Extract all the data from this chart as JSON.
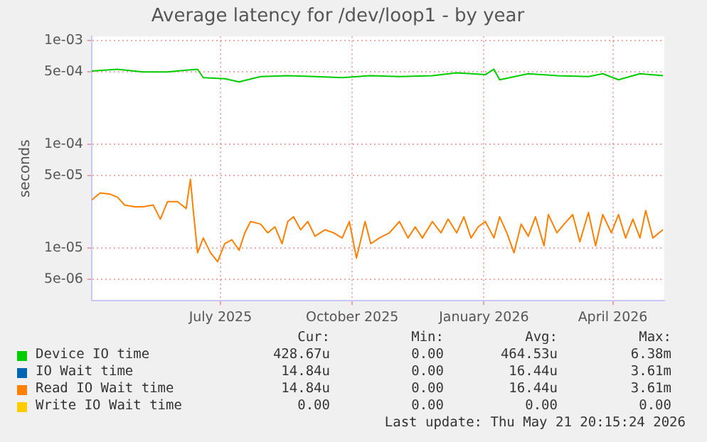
{
  "chart_data": {
    "type": "line",
    "title": "Average latency for /dev/loop1 - by year",
    "ylabel": "seconds",
    "log": "y",
    "grid": true,
    "legend": "bottom",
    "marker": "none",
    "line_style": "solid",
    "xlim": [
      "2025-04-16",
      "2026-05-21"
    ],
    "xticks": [
      {
        "value": "2025-07-15",
        "label": "July 2025"
      },
      {
        "value": "2025-10-15",
        "label": "October 2025"
      },
      {
        "value": "2026-01-15",
        "label": "January 2026"
      },
      {
        "value": "2026-04-15",
        "label": "April 2026"
      }
    ],
    "ylim": [
      3.1e-06,
      0.0011
    ],
    "yticks": [
      {
        "value": 5e-06,
        "label": "5e-06"
      },
      {
        "value": 1e-05,
        "label": "1e-05"
      },
      {
        "value": 5e-05,
        "label": "5e-05"
      },
      {
        "value": 0.0001,
        "label": "1e-04"
      },
      {
        "value": 0.0005,
        "label": "5e-04"
      },
      {
        "value": 0.001,
        "label": "1e-03"
      }
    ],
    "series": [
      {
        "name": "Device IO time",
        "color": "#00cc00",
        "x": [
          "2025-04-16",
          "2025-05-04",
          "2025-05-22",
          "2025-06-08",
          "2025-06-21",
          "2025-06-29",
          "2025-07-03",
          "2025-07-18",
          "2025-07-28",
          "2025-08-12",
          "2025-08-31",
          "2025-09-19",
          "2025-10-08",
          "2025-10-28",
          "2025-11-17",
          "2025-12-10",
          "2025-12-27",
          "2026-01-16",
          "2026-01-22",
          "2026-01-26",
          "2026-02-15",
          "2026-03-07",
          "2026-03-29",
          "2026-04-08",
          "2026-04-19",
          "2026-05-04",
          "2026-05-20"
        ],
        "values": [
          0.00051,
          0.00053,
          0.0005,
          0.0005,
          0.00052,
          0.00053,
          0.00044,
          0.00043,
          0.0004,
          0.00045,
          0.00046,
          0.00045,
          0.00044,
          0.00046,
          0.00045,
          0.00046,
          0.00049,
          0.00047,
          0.00053,
          0.00042,
          0.00048,
          0.00046,
          0.00045,
          0.00048,
          0.00042,
          0.00048,
          0.00046
        ]
      },
      {
        "name": "IO Wait time",
        "color": "#0066b3"
      },
      {
        "name": "Read IO Wait time",
        "color": "#ff8000",
        "x": [
          "2025-04-16",
          "2025-04-22",
          "2025-04-29",
          "2025-05-04",
          "2025-05-09",
          "2025-05-16",
          "2025-05-22",
          "2025-05-29",
          "2025-06-03",
          "2025-06-08",
          "2025-06-15",
          "2025-06-21",
          "2025-06-24",
          "2025-06-26",
          "2025-06-29",
          "2025-07-03",
          "2025-07-08",
          "2025-07-13",
          "2025-07-18",
          "2025-07-23",
          "2025-07-28",
          "2025-08-01",
          "2025-08-05",
          "2025-08-12",
          "2025-08-17",
          "2025-08-22",
          "2025-08-27",
          "2025-08-31",
          "2025-09-04",
          "2025-09-09",
          "2025-09-14",
          "2025-09-19",
          "2025-09-26",
          "2025-10-02",
          "2025-10-08",
          "2025-10-13",
          "2025-10-18",
          "2025-10-24",
          "2025-10-28",
          "2025-11-03",
          "2025-11-10",
          "2025-11-17",
          "2025-11-23",
          "2025-11-28",
          "2025-12-03",
          "2025-12-10",
          "2025-12-16",
          "2025-12-21",
          "2025-12-27",
          "2026-01-01",
          "2026-01-06",
          "2026-01-11",
          "2026-01-16",
          "2026-01-22",
          "2026-01-26",
          "2026-01-31",
          "2026-02-05",
          "2026-02-10",
          "2026-02-15",
          "2026-02-20",
          "2026-02-26",
          "2026-03-01",
          "2026-03-07",
          "2026-03-12",
          "2026-03-18",
          "2026-03-23",
          "2026-03-29",
          "2026-04-03",
          "2026-04-08",
          "2026-04-14",
          "2026-04-19",
          "2026-04-24",
          "2026-04-29",
          "2026-05-04",
          "2026-05-08",
          "2026-05-13",
          "2026-05-20"
        ],
        "values": [
          2.9e-05,
          3.4e-05,
          3.3e-05,
          3.1e-05,
          2.6e-05,
          2.5e-05,
          2.5e-05,
          2.6e-05,
          1.9e-05,
          2.8e-05,
          2.8e-05,
          2.4e-05,
          4.6e-05,
          2.3e-05,
          9e-06,
          1.25e-05,
          9e-06,
          7.4e-06,
          1.1e-05,
          1.2e-05,
          9.5e-06,
          1.4e-05,
          1.8e-05,
          1.7e-05,
          1.4e-05,
          1.6e-05,
          1.1e-05,
          1.8e-05,
          2e-05,
          1.5e-05,
          1.8e-05,
          1.3e-05,
          1.5e-05,
          1.4e-05,
          1.25e-05,
          1.8e-05,
          8e-06,
          1.8e-05,
          1.1e-05,
          1.25e-05,
          1.4e-05,
          1.8e-05,
          1.25e-05,
          1.6e-05,
          1.25e-05,
          1.8e-05,
          1.4e-05,
          1.9e-05,
          1.4e-05,
          2e-05,
          1.25e-05,
          1.6e-05,
          1.8e-05,
          1.25e-05,
          2e-05,
          1.4e-05,
          9e-06,
          1.7e-05,
          1.3e-05,
          2e-05,
          1.05e-05,
          2.1e-05,
          1.4e-05,
          1.7e-05,
          2.1e-05,
          1.15e-05,
          2.2e-05,
          1.05e-05,
          2.1e-05,
          1.4e-05,
          2.1e-05,
          1.25e-05,
          1.9e-05,
          1.25e-05,
          2.3e-05,
          1.25e-05,
          1.5e-05
        ]
      },
      {
        "name": "Write IO Wait time",
        "color": "#ffcc00"
      }
    ],
    "annotations": [
      "Cur:",
      "Min:",
      "Avg:",
      "Max:",
      "428.67u",
      "0.00",
      "464.53u",
      "6.38m",
      "14.84u",
      "0.00",
      "16.44u",
      "3.61m",
      "14.84u",
      "0.00",
      "16.44u",
      "3.61m",
      "0.00",
      "0.00",
      "0.00",
      "0.00",
      "Last update: Thu May 21 20:15:24 2026"
    ]
  }
}
